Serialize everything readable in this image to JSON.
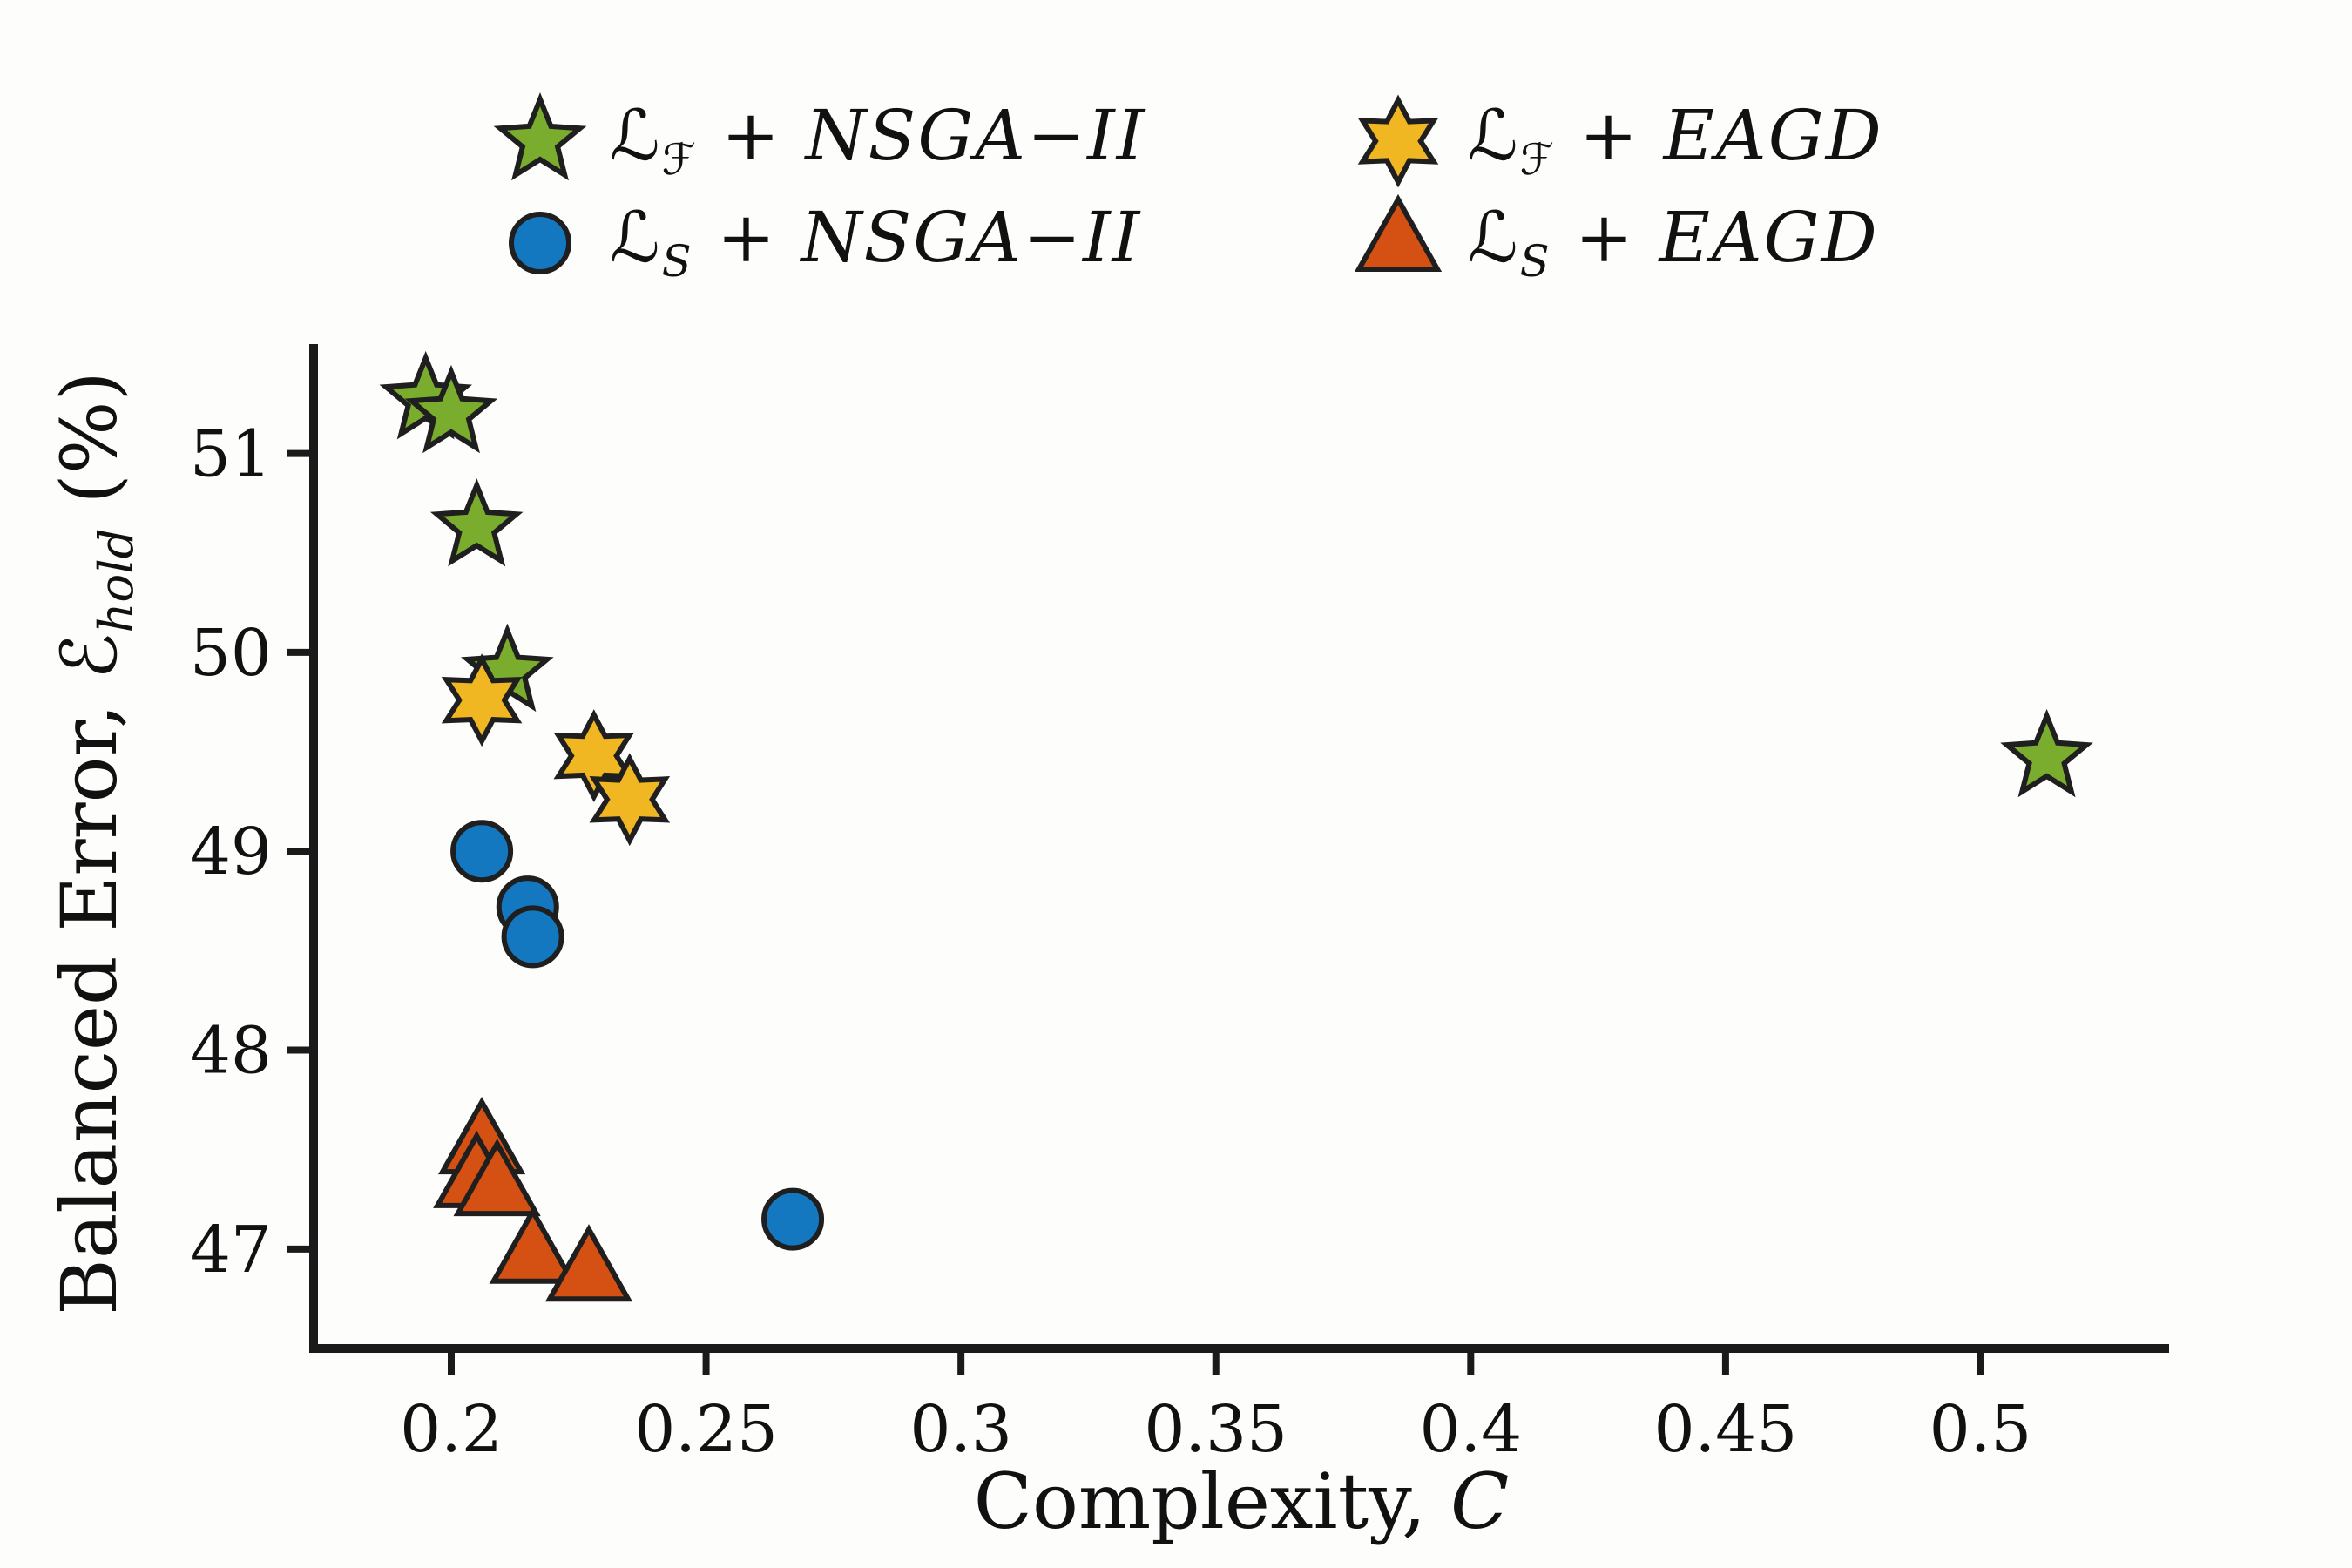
{
  "figure": {
    "background": "#fdfdfc",
    "axis_color": "#1a1a1a"
  },
  "labels": {
    "x_prefix": "Complexity, ",
    "x_sym": "C",
    "y_prefix": "Balanced Error, ",
    "y_sym": "ℰ",
    "y_sub": "hold",
    "y_suffix": " (%)"
  },
  "legend": {
    "items": [
      {
        "sym": "ℒ",
        "sub": "ℱ",
        "rest": " + NSGA−II",
        "marker": "star5"
      },
      {
        "sym": "ℒ",
        "sub": "ℱ",
        "rest": " + EAGD",
        "marker": "star6"
      },
      {
        "sym": "ℒ",
        "sub": "S",
        "rest": " + NSGA−II",
        "marker": "circle"
      },
      {
        "sym": "ℒ",
        "sub": "S",
        "rest": " + EAGD",
        "marker": "triangle"
      }
    ]
  },
  "chart_data": {
    "type": "scatter",
    "title": "",
    "xlabel": "Complexity, C",
    "ylabel": "Balanced Error, E_hold (%)",
    "xlim": [
      0.173,
      0.537
    ],
    "ylim": [
      46.5,
      51.55
    ],
    "grid": false,
    "legend_position": "top-outside",
    "x_axis": {
      "tick_values": [
        0.2,
        0.25,
        0.3,
        0.35,
        0.4,
        0.45,
        0.5
      ],
      "tick_labels": [
        "0.2",
        "0.25",
        "0.3",
        "0.35",
        "0.4",
        "0.45",
        "0.5"
      ]
    },
    "y_axis": {
      "tick_values": [
        47,
        48,
        49,
        50,
        51
      ],
      "tick_labels": [
        "47",
        "48",
        "49",
        "50",
        "51"
      ]
    },
    "series": [
      {
        "name": "LF + NSGA-II",
        "marker": "star5",
        "color": "#7aac2e",
        "edge": "#1f1f1f",
        "points": [
          [
            0.195,
            51.27
          ],
          [
            0.2,
            51.2
          ],
          [
            0.205,
            50.63
          ],
          [
            0.211,
            49.9
          ],
          [
            0.513,
            49.47
          ]
        ]
      },
      {
        "name": "LF + EAGD",
        "marker": "star6",
        "color": "#f0b723",
        "edge": "#1f1f1f",
        "points": [
          [
            0.206,
            49.76
          ],
          [
            0.228,
            49.48
          ],
          [
            0.235,
            49.26
          ]
        ]
      },
      {
        "name": "LS + NSGA-II",
        "marker": "circle",
        "color": "#1478c0",
        "edge": "#1f1f1f",
        "points": [
          [
            0.206,
            49.0
          ],
          [
            0.215,
            48.72
          ],
          [
            0.216,
            48.57
          ],
          [
            0.267,
            47.15
          ]
        ]
      },
      {
        "name": "LS + EAGD",
        "marker": "triangle",
        "color": "#d55113",
        "edge": "#1f1f1f",
        "points": [
          [
            0.206,
            47.52
          ],
          [
            0.205,
            47.35
          ],
          [
            0.209,
            47.31
          ],
          [
            0.216,
            46.97
          ],
          [
            0.227,
            46.88
          ]
        ]
      }
    ]
  }
}
